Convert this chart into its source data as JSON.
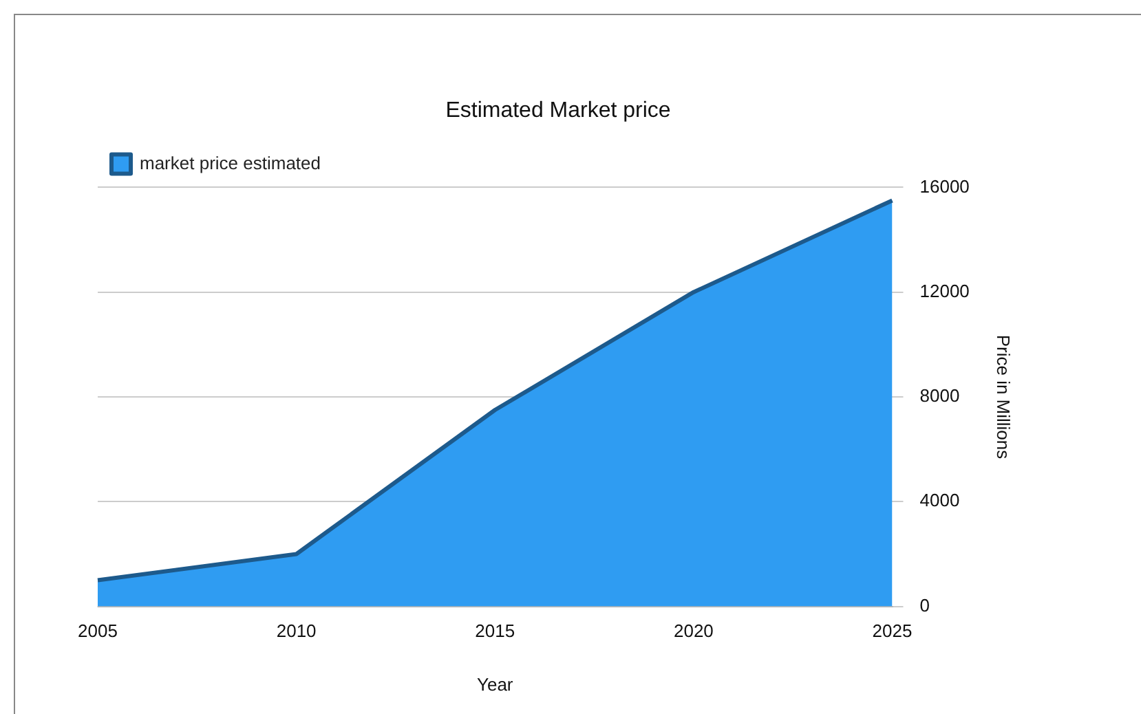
{
  "chart_data": {
    "type": "area",
    "title": "Estimated Market price",
    "xlabel": "Year",
    "ylabel": "Price in Millions",
    "categories": [
      "2005",
      "2010",
      "2015",
      "2020",
      "2025"
    ],
    "series": [
      {
        "name": "market price estimated",
        "color": "#2f9cf2",
        "values": [
          1000,
          2000,
          7500,
          12000,
          15500
        ]
      }
    ],
    "ylim": [
      0,
      16000
    ],
    "yticks": [
      0,
      4000,
      8000,
      12000,
      16000
    ],
    "grid": "y",
    "legend": "top left"
  }
}
